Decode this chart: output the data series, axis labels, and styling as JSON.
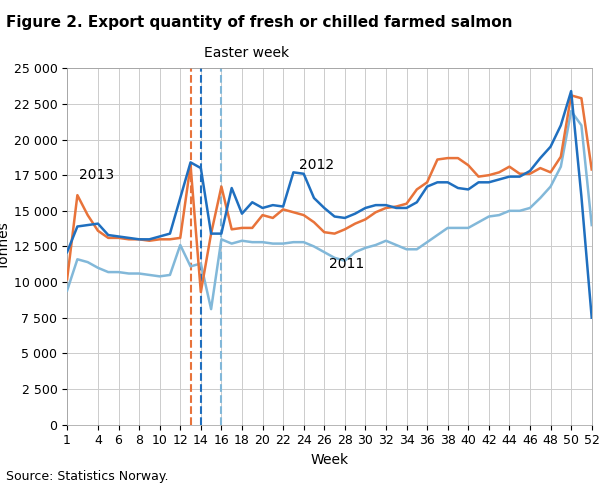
{
  "title": "Figure 2. Export quantity of fresh or chilled farmed salmon",
  "ylabel": "Tonnes",
  "xlabel": "Week",
  "source": "Source: Statistics Norway.",
  "easter_label": "Easter week",
  "vline_orange": 13,
  "vline_dark_blue": 14,
  "vline_light_blue": 16,
  "ylim": [
    0,
    25000
  ],
  "yticks": [
    0,
    2500,
    5000,
    7500,
    10000,
    12500,
    15000,
    17500,
    20000,
    22500,
    25000
  ],
  "ytick_labels": [
    "0",
    "2 500",
    "5 000",
    "7 500",
    "10 000",
    "12 500",
    "15 000",
    "17 500",
    "20 000",
    "22 500",
    "25 000"
  ],
  "xticks": [
    1,
    4,
    6,
    8,
    10,
    12,
    14,
    16,
    18,
    20,
    22,
    24,
    26,
    28,
    30,
    32,
    34,
    36,
    38,
    40,
    42,
    44,
    46,
    48,
    50,
    52
  ],
  "color_2013": "#E8733A",
  "color_2012": "#1F6FBF",
  "color_2011": "#82B8D9",
  "linewidth": 1.8,
  "label_2013": "2013",
  "label_2012": "2012",
  "label_2011": "2011",
  "weeks": [
    1,
    2,
    3,
    4,
    5,
    6,
    7,
    8,
    9,
    10,
    11,
    12,
    13,
    14,
    15,
    16,
    17,
    18,
    19,
    20,
    21,
    22,
    23,
    24,
    25,
    26,
    27,
    28,
    29,
    30,
    31,
    32,
    33,
    34,
    35,
    36,
    37,
    38,
    39,
    40,
    41,
    42,
    43,
    44,
    45,
    46,
    47,
    48,
    49,
    50,
    51,
    52
  ],
  "data_2013": [
    10200,
    16100,
    14700,
    13600,
    13100,
    13100,
    13000,
    13000,
    12900,
    13000,
    13000,
    13100,
    18200,
    9300,
    13400,
    16700,
    13700,
    13800,
    13800,
    14700,
    14500,
    15100,
    14900,
    14700,
    14200,
    13500,
    13400,
    13700,
    14100,
    14400,
    14900,
    15200,
    15300,
    15500,
    16500,
    17000,
    18600,
    18700,
    18700,
    18200,
    17400,
    17500,
    17700,
    18100,
    17600,
    17600,
    18000,
    17700,
    18800,
    23100,
    22900,
    17900
  ],
  "data_2012": [
    12100,
    13900,
    14000,
    14100,
    13300,
    13200,
    13100,
    13000,
    13000,
    13200,
    13400,
    15900,
    18400,
    18000,
    13400,
    13400,
    16600,
    14800,
    15600,
    15200,
    15400,
    15300,
    17700,
    17600,
    15900,
    15200,
    14600,
    14500,
    14800,
    15200,
    15400,
    15400,
    15200,
    15200,
    15600,
    16700,
    17000,
    17000,
    16600,
    16500,
    17000,
    17000,
    17200,
    17400,
    17400,
    17800,
    18700,
    19500,
    21000,
    23400,
    16000,
    7500
  ],
  "data_2011": [
    9400,
    11600,
    11400,
    11000,
    10700,
    10700,
    10600,
    10600,
    10500,
    10400,
    10500,
    12600,
    11100,
    11300,
    8100,
    13000,
    12700,
    12900,
    12800,
    12800,
    12700,
    12700,
    12800,
    12800,
    12500,
    12100,
    11700,
    11500,
    12100,
    12400,
    12600,
    12900,
    12600,
    12300,
    12300,
    12800,
    13300,
    13800,
    13800,
    13800,
    14200,
    14600,
    14700,
    15000,
    15000,
    15200,
    15900,
    16700,
    18100,
    22000,
    21000,
    14000
  ]
}
